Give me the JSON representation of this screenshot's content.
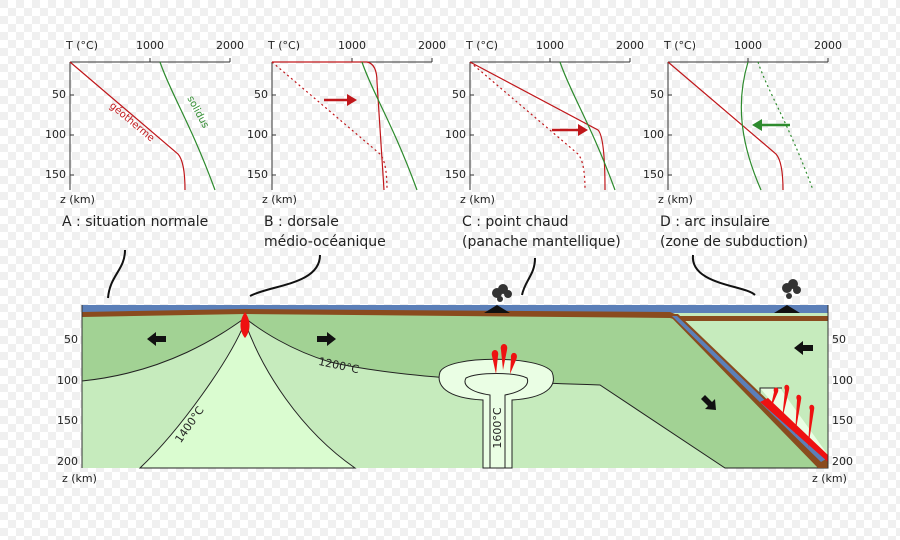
{
  "panels": [
    {
      "t_label": "T (°C)",
      "x_ticks": [
        "1000",
        "2000"
      ],
      "y_ticks": [
        "50",
        "100",
        "150"
      ],
      "z_label": "z (km)",
      "caption": [
        "A : situation normale"
      ],
      "curve_labels": [
        "géotherme",
        "solidus"
      ]
    },
    {
      "t_label": "T (°C)",
      "x_ticks": [
        "1000",
        "2000"
      ],
      "y_ticks": [
        "50",
        "100",
        "150"
      ],
      "z_label": "z (km)",
      "caption": [
        "B : dorsale",
        "médio-océanique"
      ]
    },
    {
      "t_label": "T (°C)",
      "x_ticks": [
        "1000",
        "2000"
      ],
      "y_ticks": [
        "50",
        "100",
        "150"
      ],
      "z_label": "z (km)",
      "caption": [
        "C : point chaud",
        "(panache mantellique)"
      ]
    },
    {
      "t_label": "T (°C)",
      "x_ticks": [
        "1000",
        "2000"
      ],
      "y_ticks": [
        "50",
        "100",
        "150"
      ],
      "z_label": "z (km)",
      "caption": [
        "D : arc insulaire",
        "(zone de subduction)"
      ]
    }
  ],
  "section": {
    "isotherms": [
      "1200°C",
      "1400°C",
      "1600°C"
    ],
    "left_ticks": [
      "50",
      "100",
      "150",
      "200"
    ],
    "right_ticks": [
      "50",
      "100",
      "150",
      "200"
    ],
    "left_z_label": "z (km)",
    "right_z_label": "z (km)"
  }
}
